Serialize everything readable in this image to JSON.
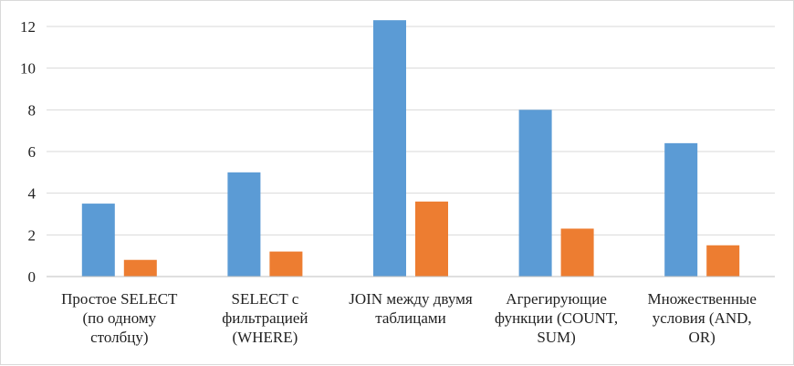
{
  "chart_data": {
    "type": "bar",
    "title": "",
    "xlabel": "",
    "ylabel": "",
    "ylim": [
      0,
      12
    ],
    "yticks": [
      0,
      2,
      4,
      6,
      8,
      10,
      12
    ],
    "grid": true,
    "legend": "none",
    "categories": [
      [
        "Простое SELECT",
        "(по одному",
        "столбцу)"
      ],
      [
        "SELECT с",
        "фильтрацией",
        "(WHERE)"
      ],
      [
        "JOIN между двумя",
        "таблицами"
      ],
      [
        "Агрегирующие",
        "функции (COUNT,",
        "SUM)"
      ],
      [
        "Множественные",
        "условия (AND,",
        "OR)"
      ]
    ],
    "series": [
      {
        "color": "#5b9bd5",
        "values": [
          3.5,
          5.0,
          12.3,
          8.0,
          6.4
        ]
      },
      {
        "color": "#ed7d31",
        "values": [
          0.8,
          1.2,
          3.6,
          2.3,
          1.5
        ]
      }
    ]
  }
}
